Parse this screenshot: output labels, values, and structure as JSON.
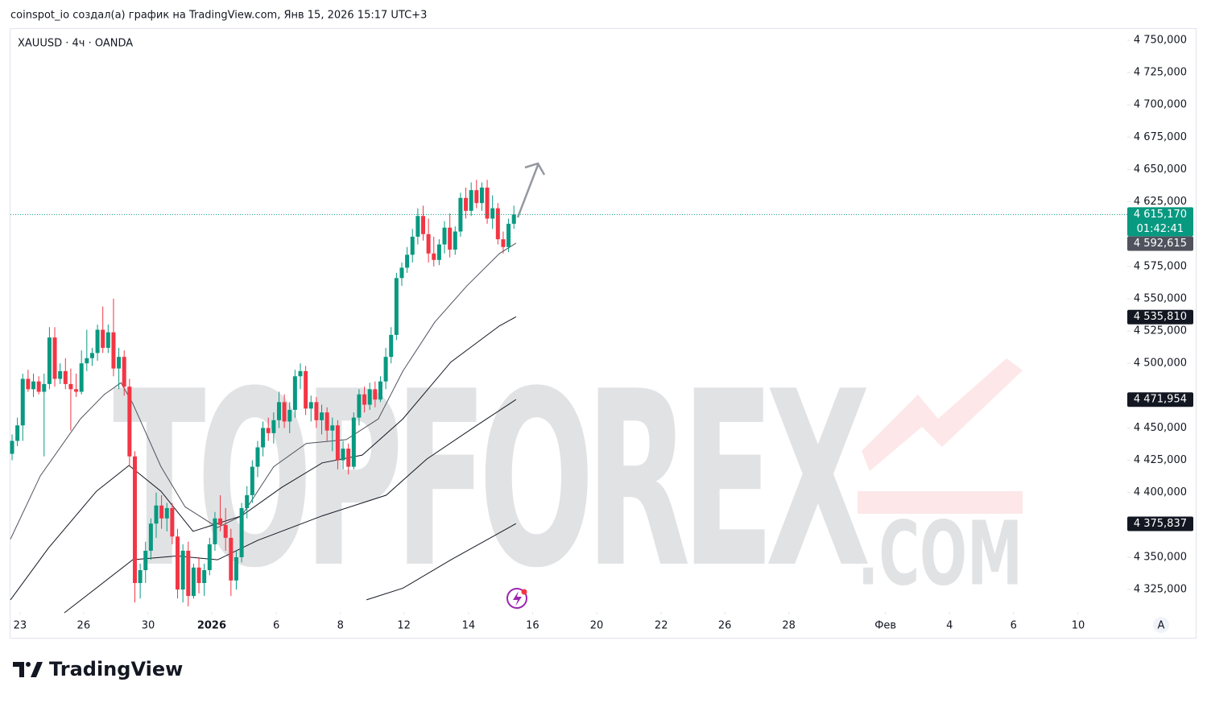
{
  "header": {
    "caption": "coinspot_io создал(а) график на TradingView.com, Янв 15, 2026 15:17 UTC+3",
    "logo": "TradingView"
  },
  "chart_data": {
    "type": "candlestick",
    "symbol": "XAUUSD · 4ч · OANDA",
    "watermark": "TOPFOREX",
    "watermark_suffix": ".COM",
    "up_color": "#089981",
    "down_color": "#f23645",
    "xlim": [
      -0.3,
      208.9
    ],
    "ylim": [
      4307.6,
      4758.7
    ],
    "xticks": [
      {
        "value": 1.5,
        "label": "23"
      },
      {
        "value": 13.4,
        "label": "26"
      },
      {
        "value": 25.5,
        "label": "30"
      },
      {
        "value": 37.4,
        "label": "2026",
        "bold": true
      },
      {
        "value": 49.5,
        "label": "6"
      },
      {
        "value": 61.5,
        "label": "8"
      },
      {
        "value": 73.4,
        "label": "12"
      },
      {
        "value": 85.5,
        "label": "14"
      },
      {
        "value": 97.5,
        "label": "16"
      },
      {
        "value": 109.5,
        "label": "20"
      },
      {
        "value": 121.6,
        "label": "22"
      },
      {
        "value": 133.5,
        "label": "26"
      },
      {
        "value": 145.5,
        "label": "28"
      },
      {
        "value": 163.6,
        "label": "Фев"
      },
      {
        "value": 175.6,
        "label": "4"
      },
      {
        "value": 187.6,
        "label": "6"
      },
      {
        "value": 199.7,
        "label": "10"
      }
    ],
    "yticks": [
      {
        "value": 4750,
        "label": "4 750,000"
      },
      {
        "value": 4725,
        "label": "4 725,000"
      },
      {
        "value": 4700,
        "label": "4 700,000"
      },
      {
        "value": 4675,
        "label": "4 675,000"
      },
      {
        "value": 4650,
        "label": "4 650,000"
      },
      {
        "value": 4625,
        "label": "4 625,000"
      },
      {
        "value": 4575,
        "label": "4 575,000"
      },
      {
        "value": 4550,
        "label": "4 550,000"
      },
      {
        "value": 4525,
        "label": "4 525,000"
      },
      {
        "value": 4500,
        "label": "4 500,000"
      },
      {
        "value": 4450,
        "label": "4 450,000"
      },
      {
        "value": 4425,
        "label": "4 425,000"
      },
      {
        "value": 4400,
        "label": "4 400,000"
      },
      {
        "value": 4350,
        "label": "4 350,000"
      },
      {
        "value": 4325,
        "label": "4 325,000"
      }
    ],
    "candles": [
      [
        4430,
        4445,
        4425,
        4440
      ],
      [
        4440,
        4458,
        4436,
        4452
      ],
      [
        4452,
        4492,
        4440,
        4488
      ],
      [
        4488,
        4495,
        4478,
        4480
      ],
      [
        4480,
        4492,
        4474,
        4486
      ],
      [
        4486,
        4490,
        4476,
        4478
      ],
      [
        4478,
        4492,
        4428,
        4484
      ],
      [
        4484,
        4528,
        4480,
        4520
      ],
      [
        4520,
        4528,
        4482,
        4488
      ],
      [
        4488,
        4500,
        4484,
        4494
      ],
      [
        4494,
        4504,
        4480,
        4484
      ],
      [
        4484,
        4496,
        4448,
        4480
      ],
      [
        4480,
        4492,
        4474,
        4478
      ],
      [
        4478,
        4510,
        4476,
        4500
      ],
      [
        4500,
        4526,
        4494,
        4504
      ],
      [
        4504,
        4512,
        4498,
        4508
      ],
      [
        4508,
        4530,
        4502,
        4526
      ],
      [
        4526,
        4544,
        4508,
        4512
      ],
      [
        4512,
        4530,
        4508,
        4524
      ],
      [
        4524,
        4550,
        4490,
        4496
      ],
      [
        4496,
        4512,
        4480,
        4505
      ],
      [
        4505,
        4510,
        4475,
        4482
      ],
      [
        4482,
        4488,
        4420,
        4428
      ],
      [
        4428,
        4432,
        4315,
        4330
      ],
      [
        4330,
        4345,
        4318,
        4340
      ],
      [
        4340,
        4362,
        4330,
        4355
      ],
      [
        4355,
        4380,
        4348,
        4376
      ],
      [
        4376,
        4400,
        4365,
        4390
      ],
      [
        4390,
        4398,
        4372,
        4380
      ],
      [
        4380,
        4392,
        4370,
        4388
      ],
      [
        4388,
        4392,
        4360,
        4366
      ],
      [
        4366,
        4372,
        4318,
        4325
      ],
      [
        4325,
        4360,
        4315,
        4355
      ],
      [
        4355,
        4362,
        4312,
        4320
      ],
      [
        4320,
        4345,
        4318,
        4342
      ],
      [
        4342,
        4350,
        4322,
        4330
      ],
      [
        4330,
        4345,
        4320,
        4340
      ],
      [
        4340,
        4365,
        4336,
        4360
      ],
      [
        4360,
        4385,
        4355,
        4380
      ],
      [
        4380,
        4398,
        4370,
        4375
      ],
      [
        4375,
        4388,
        4355,
        4365
      ],
      [
        4365,
        4372,
        4320,
        4332
      ],
      [
        4332,
        4355,
        4325,
        4350
      ],
      [
        4350,
        4392,
        4346,
        4388
      ],
      [
        4388,
        4405,
        4380,
        4398
      ],
      [
        4398,
        4425,
        4392,
        4420
      ],
      [
        4420,
        4440,
        4412,
        4435
      ],
      [
        4435,
        4455,
        4428,
        4450
      ],
      [
        4450,
        4458,
        4440,
        4446
      ],
      [
        4446,
        4462,
        4438,
        4456
      ],
      [
        4456,
        4478,
        4450,
        4470
      ],
      [
        4470,
        4476,
        4450,
        4455
      ],
      [
        4455,
        4470,
        4446,
        4464
      ],
      [
        4464,
        4495,
        4458,
        4490
      ],
      [
        4490,
        4500,
        4480,
        4494
      ],
      [
        4494,
        4498,
        4460,
        4465
      ],
      [
        4465,
        4475,
        4455,
        4470
      ],
      [
        4470,
        4474,
        4450,
        4456
      ],
      [
        4456,
        4468,
        4445,
        4462
      ],
      [
        4462,
        4466,
        4440,
        4448
      ],
      [
        4448,
        4458,
        4432,
        4452
      ],
      [
        4452,
        4456,
        4418,
        4425
      ],
      [
        4425,
        4440,
        4418,
        4434
      ],
      [
        4434,
        4438,
        4414,
        4420
      ],
      [
        4420,
        4462,
        4418,
        4458
      ],
      [
        4458,
        4480,
        4452,
        4476
      ],
      [
        4476,
        4482,
        4462,
        4468
      ],
      [
        4468,
        4485,
        4464,
        4480
      ],
      [
        4480,
        4486,
        4466,
        4472
      ],
      [
        4472,
        4490,
        4470,
        4486
      ],
      [
        4486,
        4512,
        4480,
        4505
      ],
      [
        4505,
        4528,
        4500,
        4522
      ],
      [
        4522,
        4570,
        4518,
        4566
      ],
      [
        4566,
        4578,
        4560,
        4574
      ],
      [
        4574,
        4590,
        4570,
        4584
      ],
      [
        4584,
        4604,
        4578,
        4598
      ],
      [
        4598,
        4620,
        4592,
        4614
      ],
      [
        4614,
        4622,
        4595,
        4600
      ],
      [
        4600,
        4612,
        4578,
        4585
      ],
      [
        4585,
        4598,
        4575,
        4580
      ],
      [
        4580,
        4596,
        4576,
        4592
      ],
      [
        4592,
        4610,
        4585,
        4605
      ],
      [
        4605,
        4616,
        4582,
        4588
      ],
      [
        4588,
        4606,
        4584,
        4602
      ],
      [
        4602,
        4632,
        4598,
        4628
      ],
      [
        4628,
        4636,
        4612,
        4618
      ],
      [
        4618,
        4640,
        4614,
        4634
      ],
      [
        4634,
        4642,
        4620,
        4624
      ],
      [
        4624,
        4640,
        4618,
        4636
      ],
      [
        4636,
        4642,
        4608,
        4612
      ],
      [
        4612,
        4630,
        4604,
        4620
      ],
      [
        4620,
        4624,
        4592,
        4596
      ],
      [
        4596,
        4602,
        4585,
        4590
      ],
      [
        4590,
        4612,
        4586,
        4608
      ],
      [
        4608,
        4622,
        4604,
        4615.17
      ]
    ],
    "lines": [
      {
        "color": "#50535e",
        "x": [
          -0.3,
          5.3,
          12.8,
          17.3,
          20.4,
          22.6,
          27.9,
          32.4,
          38.5,
          43.0,
          49.0,
          55.1,
          62.6,
          68.6,
          73.2,
          79.2,
          85.2,
          91.3,
          94.4
        ],
        "values": [
          4364,
          4413,
          4457,
          4476,
          4485,
          4469,
          4420,
          4389,
          4373,
          4382,
          4420,
          4438,
          4441,
          4457,
          4494,
          4532,
          4560,
          4585,
          4593
        ]
      },
      {
        "color": "#131722",
        "x": [
          -0.3,
          6.8,
          15.8,
          21.9,
          27.9,
          33.9,
          43.0,
          50.5,
          58.1,
          65.6,
          73.2,
          82.2,
          91.3,
          94.4
        ],
        "values": [
          4317,
          4357,
          4401,
          4421,
          4401,
          4370,
          4382,
          4404,
          4423,
          4429,
          4457,
          4501,
          4529,
          4536
        ]
      },
      {
        "color": "#131722",
        "x": [
          9.8,
          22.6,
          30.9,
          38.5,
          46.0,
          58.1,
          70.1,
          77.7,
          86.7,
          94.4
        ],
        "values": [
          4307,
          4348,
          4351,
          4348,
          4363,
          4382,
          4398,
          4426,
          4451,
          4472
        ]
      },
      {
        "color": "#131722",
        "x": [
          66.4,
          73.2,
          82.2,
          94.4
        ],
        "values": [
          4317,
          4326,
          4348,
          4376
        ]
      }
    ],
    "price_tags": [
      {
        "value": 4615.17,
        "label": "4 615,170",
        "color": "#089981"
      },
      {
        "value": 4592.615,
        "label": "4 592,615",
        "color": "#50535e"
      },
      {
        "value": 4535.81,
        "label": "4 535,810",
        "color": "#131722"
      },
      {
        "value": 4471.954,
        "label": "4 471,954",
        "color": "#131722"
      },
      {
        "value": 4375.837,
        "label": "4 375,837",
        "color": "#131722"
      }
    ],
    "countdown": "01:42:41",
    "auto_button": "A"
  }
}
